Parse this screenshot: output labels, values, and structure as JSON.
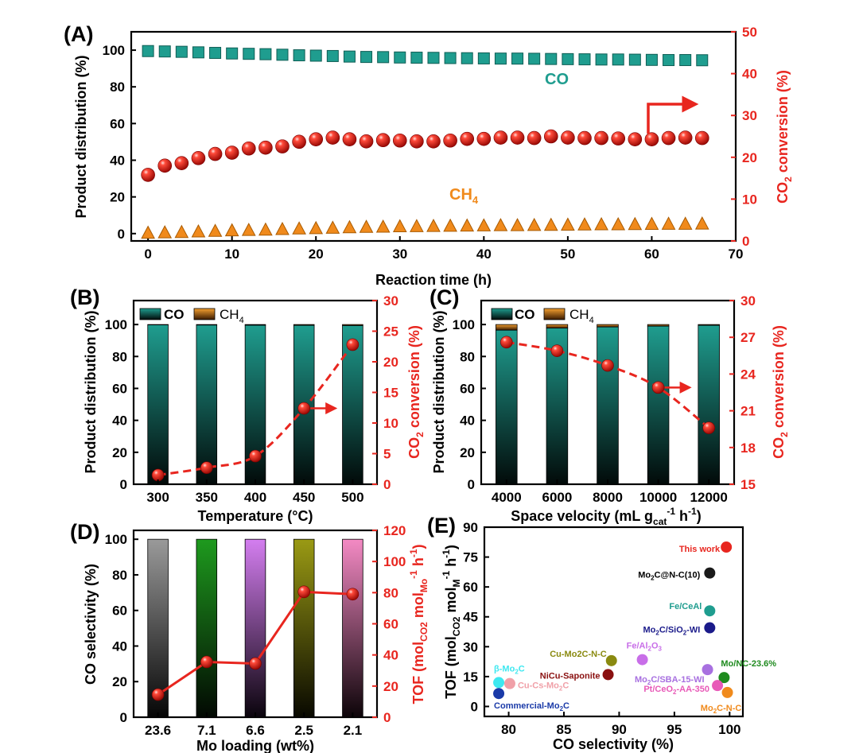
{
  "colors": {
    "teal": "#1f9d8f",
    "red": "#e8261f",
    "orange": "#f08a1c",
    "axis_black": "#000000"
  },
  "chart_data": [
    {
      "panel_label": "(A)",
      "type": "scatter",
      "xlabel": "Reaction time (h)",
      "ylabel": "Product distribution (%)",
      "y2label": "CO",
      "y2label_sub": "2",
      "y2label_tail": " conversion (%)",
      "xlim": [
        -2,
        70
      ],
      "ylim": [
        -4,
        110
      ],
      "y2lim": [
        0,
        50
      ],
      "xticks": [
        "0",
        "10",
        "20",
        "30",
        "40",
        "50",
        "60",
        "70"
      ],
      "yticks": [
        "0",
        "20",
        "40",
        "60",
        "80",
        "100"
      ],
      "y2ticks": [
        "0",
        "10",
        "20",
        "30",
        "40",
        "50"
      ],
      "annotation_co": "CO",
      "annotation_ch4": "CH",
      "annotation_ch4_sub": "4",
      "series": [
        {
          "name": "CO",
          "axis": "left",
          "marker": "square",
          "x": [
            0,
            2,
            4,
            6,
            8,
            10,
            12,
            14,
            16,
            18,
            20,
            22,
            24,
            26,
            28,
            30,
            32,
            34,
            36,
            38,
            40,
            42,
            44,
            46,
            48,
            50,
            52,
            54,
            56,
            58,
            60,
            62,
            64,
            66
          ],
          "values": [
            99.5,
            99.3,
            99.1,
            98.8,
            98.5,
            98.2,
            98.0,
            97.8,
            97.5,
            97.2,
            97.0,
            96.8,
            96.5,
            96.3,
            96.2,
            96.0,
            95.9,
            95.8,
            95.7,
            95.6,
            95.5,
            95.4,
            95.4,
            95.3,
            95.2,
            95.1,
            95.0,
            94.9,
            94.9,
            94.8,
            94.7,
            94.6,
            94.6,
            94.5
          ]
        },
        {
          "name": "CH4",
          "axis": "left",
          "marker": "triangle",
          "x": [
            0,
            2,
            4,
            6,
            8,
            10,
            12,
            14,
            16,
            18,
            20,
            22,
            24,
            26,
            28,
            30,
            32,
            34,
            36,
            38,
            40,
            42,
            44,
            46,
            48,
            50,
            52,
            54,
            56,
            58,
            60,
            62,
            64,
            66
          ],
          "values": [
            0.5,
            0.7,
            0.9,
            1.2,
            1.5,
            1.8,
            2.0,
            2.2,
            2.5,
            2.8,
            3.0,
            3.2,
            3.5,
            3.7,
            3.8,
            4.0,
            4.1,
            4.2,
            4.3,
            4.4,
            4.5,
            4.6,
            4.6,
            4.7,
            4.8,
            4.9,
            5.0,
            5.1,
            5.1,
            5.2,
            5.3,
            5.4,
            5.4,
            5.5
          ]
        },
        {
          "name": "CO2 conversion",
          "axis": "right",
          "marker": "sphere",
          "x": [
            0,
            2,
            4,
            6,
            8,
            10,
            12,
            14,
            16,
            18,
            20,
            22,
            24,
            26,
            28,
            30,
            32,
            34,
            36,
            38,
            40,
            42,
            44,
            46,
            48,
            50,
            52,
            54,
            56,
            58,
            60,
            62,
            64,
            66
          ],
          "values": [
            15.8,
            18.0,
            18.6,
            19.8,
            20.8,
            21.1,
            22.1,
            22.3,
            22.6,
            23.7,
            24.3,
            24.7,
            24.3,
            23.8,
            24.1,
            24.0,
            23.8,
            23.8,
            24.0,
            24.4,
            24.4,
            24.7,
            24.7,
            24.6,
            25.0,
            24.7,
            24.6,
            24.6,
            24.5,
            24.3,
            24.3,
            24.6,
            24.7,
            24.6
          ]
        }
      ]
    },
    {
      "panel_label": "(B)",
      "type": "bar",
      "xlabel": "Temperature (°C)",
      "ylabel": "Product distribution (%)",
      "y2label": "CO",
      "y2label_sub": "2",
      "y2label_tail": " conversion (%)",
      "categories": [
        "300",
        "350",
        "400",
        "450",
        "500"
      ],
      "ylim": [
        0,
        115
      ],
      "y2lim": [
        0,
        30
      ],
      "yticks": [
        "0",
        "20",
        "40",
        "60",
        "80",
        "100"
      ],
      "y2ticks": [
        "0",
        "5",
        "10",
        "15",
        "20",
        "25",
        "30"
      ],
      "legend": [
        "CO",
        "CH",
        "4"
      ],
      "series": [
        {
          "name": "CO",
          "values": [
            99.8,
            99.7,
            99.6,
            99.5,
            99.4
          ]
        },
        {
          "name": "CH4",
          "values": [
            0.2,
            0.3,
            0.4,
            0.5,
            0.6
          ]
        },
        {
          "name": "CO2 conversion",
          "axis": "right",
          "values": [
            1.5,
            2.7,
            4.6,
            12.4,
            22.8
          ]
        }
      ]
    },
    {
      "panel_label": "(C)",
      "type": "bar",
      "xlabel": "Space velocity (mL g",
      "xlabel_sub": "cat",
      "xlabel_sup1": "-1",
      "xlabel_mid": " h",
      "xlabel_sup2": "-1",
      "xlabel_tail": ")",
      "ylabel": "Product distribution (%)",
      "y2label": "CO",
      "y2label_sub": "2",
      "y2label_tail": " conversion (%)",
      "categories": [
        "4000",
        "6000",
        "8000",
        "10000",
        "12000"
      ],
      "ylim": [
        0,
        115
      ],
      "y2lim": [
        15,
        30
      ],
      "yticks": [
        "0",
        "20",
        "40",
        "60",
        "80",
        "100"
      ],
      "y2ticks": [
        "15",
        "18",
        "21",
        "24",
        "27",
        "30"
      ],
      "legend": [
        "CO",
        "CH",
        "4"
      ],
      "series": [
        {
          "name": "CO",
          "values": [
            96.5,
            97.8,
            98.5,
            99.0,
            99.5
          ]
        },
        {
          "name": "CH4",
          "values": [
            3.5,
            2.2,
            1.5,
            1.0,
            0.5
          ]
        },
        {
          "name": "CO2 conversion",
          "axis": "right",
          "values": [
            26.6,
            25.9,
            24.7,
            22.9,
            19.6
          ]
        }
      ]
    },
    {
      "panel_label": "(D)",
      "type": "bar",
      "xlabel": "Mo loading (wt%)",
      "ylabel": "CO selectivity (%)",
      "y2label": "TOF (mol",
      "y2label_sub1": "CO2",
      "y2label_mid": " mol",
      "y2label_sub2": "Mo",
      "y2label_sup1": "-1",
      "y2label_mid2": " h",
      "y2label_sup2": "-1",
      "y2label_tail": ")",
      "categories": [
        "23.6",
        "7.1",
        "6.6",
        "2.5",
        "2.1"
      ],
      "ylim": [
        0,
        105
      ],
      "y2lim": [
        0,
        120
      ],
      "yticks": [
        "0",
        "20",
        "40",
        "60",
        "80",
        "100"
      ],
      "y2ticks": [
        "0",
        "20",
        "40",
        "60",
        "80",
        "100",
        "120"
      ],
      "bar_colors": [
        "#8a8a8a",
        "#1e8a1e",
        "#c86ee8",
        "#8a8a10",
        "#ee7ab8"
      ],
      "series": [
        {
          "name": "CO selectivity",
          "values": [
            100,
            100,
            100,
            100,
            100
          ]
        },
        {
          "name": "TOF",
          "axis": "right",
          "values": [
            14.5,
            35.5,
            34.5,
            80.5,
            79
          ]
        }
      ]
    },
    {
      "panel_label": "(E)",
      "type": "scatter",
      "xlabel": "CO selectivity (%)",
      "ylabel": "TOF (mol",
      "ylabel_sub1": "CO2",
      "ylabel_mid": " mol",
      "ylabel_sub2": "M",
      "ylabel_sup1": "-1",
      "ylabel_mid2": " h",
      "ylabel_sup2": "-1",
      "ylabel_tail": ")",
      "xlim": [
        77.8,
        101.2
      ],
      "ylim": [
        -5,
        90
      ],
      "xticks": [
        "80",
        "85",
        "90",
        "95",
        "100"
      ],
      "yticks": [
        "0",
        "15",
        "30",
        "45",
        "60",
        "75",
        "90"
      ],
      "points": [
        {
          "label": "This work",
          "x": 99.7,
          "y": 80,
          "color": "#e8261f"
        },
        {
          "label": "Mo2C@N-C(10)",
          "label_main": "Mo",
          "label_sub": "2",
          "label_tail": "C@N-C(10)",
          "x": 98.2,
          "y": 67,
          "color": "#1a1a1a"
        },
        {
          "label": "Fe/CeAl",
          "x": 98.2,
          "y": 48,
          "color": "#1f9d8f"
        },
        {
          "label": "Mo2C/SiO2-WI",
          "label_main": "Mo",
          "label_sub": "2",
          "label_tail": "C/SiO",
          "label_sub2": "2",
          "label_tail2": "-WI",
          "x": 98.2,
          "y": 39.5,
          "color": "#1a1a8a"
        },
        {
          "label": "Fe/Al2O3",
          "label_main": "Fe/Al",
          "label_sub": "2",
          "label_tail": "O",
          "label_sub2": "3",
          "label_tail2": "",
          "x": 92.1,
          "y": 23.5,
          "color": "#c86ee8"
        },
        {
          "label": "Cu-Mo2C-N-C",
          "x": 89.3,
          "y": 23,
          "color": "#8a8a10"
        },
        {
          "label": "Mo/NC-23.6%",
          "x": 99.5,
          "y": 14.5,
          "color": "#1e8a1e"
        },
        {
          "label": "Mo2C/SBA-15-WI",
          "label_main": "Mo",
          "label_sub": "2",
          "label_tail": "C/SBA-15-WI",
          "x": 98.0,
          "y": 18.5,
          "color": "#a870e0"
        },
        {
          "label": "β-Mo2C",
          "label_main": "β-Mo",
          "label_sub": "2",
          "label_tail": "C",
          "x": 79.1,
          "y": 12,
          "color": "#3ee8f0"
        },
        {
          "label": "NiCu-Saponite",
          "x": 89.0,
          "y": 16,
          "color": "#8a1010"
        },
        {
          "label": "Cu-Cs-Mo2C",
          "label_main": "Cu-Cs-Mo",
          "label_sub": "2",
          "label_tail": "C",
          "x": 80.1,
          "y": 11.5,
          "color": "#f0a0a8"
        },
        {
          "label": "Pt/CeO2-AA-350",
          "label_main": "Pt/CeO",
          "label_sub": "2",
          "label_tail": "-AA-350",
          "x": 98.9,
          "y": 10.5,
          "color": "#e85ab8"
        },
        {
          "label": "Commercial-Mo2C",
          "label_main": "Commercial-Mo",
          "label_sub": "2",
          "label_tail": "C",
          "x": 79.1,
          "y": 6.5,
          "color": "#1a3aa8"
        },
        {
          "label": "Mo2C-N-C",
          "label_main": "Mo",
          "label_sub": "2",
          "label_tail": "C-N-C",
          "x": 99.8,
          "y": 7,
          "color": "#f08a1c"
        }
      ]
    }
  ]
}
